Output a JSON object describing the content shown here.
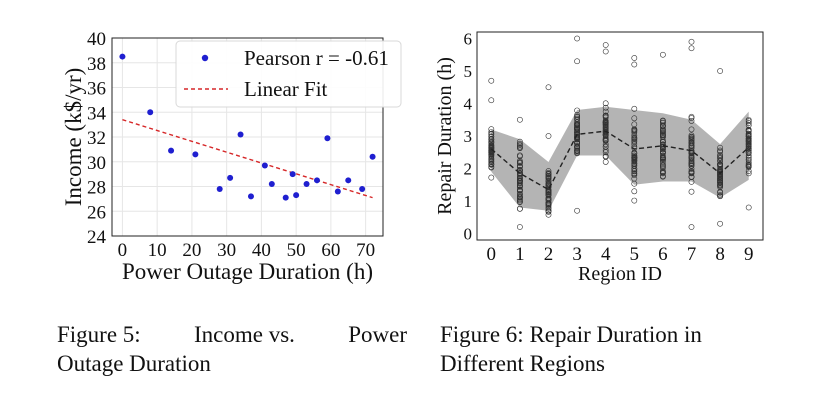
{
  "figures": [
    {
      "caption_lines": [
        [
          "Figure 5:",
          "Income vs.",
          "Power"
        ],
        [
          "Outage Duration"
        ]
      ]
    },
    {
      "caption_lines": [
        [
          "Figure 6: Repair Duration in"
        ],
        [
          "Different Regions"
        ]
      ]
    }
  ],
  "chart_data": [
    {
      "type": "scatter",
      "xlabel": "Power Outage Duration (h)",
      "ylabel": "Income (k$/yr)",
      "xticks": [
        0,
        10,
        20,
        30,
        40,
        50,
        60,
        70
      ],
      "yticks": [
        24,
        26,
        28,
        30,
        32,
        34,
        36,
        38,
        40
      ],
      "xlim": [
        -3,
        75
      ],
      "ylim": [
        24,
        40
      ],
      "grid": true,
      "legend_position": "top-right",
      "series": [
        {
          "name": "Pearson r = -0.61",
          "kind": "points",
          "color": "#1f1fd0",
          "points": [
            [
              0,
              38.5
            ],
            [
              8,
              34
            ],
            [
              14,
              30.9
            ],
            [
              21,
              30.6
            ],
            [
              28,
              27.8
            ],
            [
              31,
              28.7
            ],
            [
              34,
              32.2
            ],
            [
              37,
              27.2
            ],
            [
              41,
              29.7
            ],
            [
              43,
              28.2
            ],
            [
              47,
              27.1
            ],
            [
              49,
              29
            ],
            [
              50,
              27.3
            ],
            [
              53,
              28.2
            ],
            [
              56,
              28.5
            ],
            [
              59,
              31.9
            ],
            [
              62,
              27.6
            ],
            [
              65,
              28.5
            ],
            [
              69,
              27.8
            ],
            [
              72,
              30.4
            ]
          ]
        },
        {
          "name": "Linear Fit",
          "kind": "line",
          "style": "dashed",
          "color": "#d62728",
          "points": [
            [
              0,
              33.4
            ],
            [
              72,
              27.1
            ]
          ]
        }
      ]
    },
    {
      "type": "line",
      "xlabel": "Region ID",
      "ylabel": "Repair Duration (h)",
      "categories": [
        "0",
        "1",
        "2",
        "3",
        "4",
        "5",
        "6",
        "7",
        "8",
        "9"
      ],
      "yticks": [
        0,
        1,
        2,
        3,
        4,
        5,
        6
      ],
      "xlim": [
        -0.5,
        9.5
      ],
      "ylim": [
        -0.2,
        6.2
      ],
      "band_color": "#b4b4b4",
      "mean_line_style": "dashed",
      "mean": [
        2.6,
        1.85,
        1.35,
        3.05,
        3.15,
        2.6,
        2.7,
        2.55,
        1.85,
        2.65
      ],
      "band_low": [
        1.9,
        0.8,
        0.7,
        2.4,
        2.4,
        1.5,
        1.6,
        1.6,
        1.1,
        1.65
      ],
      "band_high": [
        3.2,
        2.9,
        2.2,
        3.8,
        3.9,
        3.8,
        3.7,
        3.5,
        2.75,
        3.75
      ],
      "point_ranges": [
        {
          "region": 0,
          "min": 1.2,
          "max": 4.7,
          "outliers": [
            4.1,
            4.7
          ]
        },
        {
          "region": 1,
          "min": 0.2,
          "max": 3.8,
          "outliers": [
            0.2,
            3.5
          ]
        },
        {
          "region": 2,
          "min": 0.4,
          "max": 4.5,
          "outliers": [
            4.5,
            3.0
          ]
        },
        {
          "region": 3,
          "min": 0.7,
          "max": 6.0,
          "outliers": [
            6.0,
            5.3,
            0.7
          ]
        },
        {
          "region": 4,
          "min": 0.9,
          "max": 5.8,
          "outliers": [
            5.8,
            5.6
          ]
        },
        {
          "region": 5,
          "min": 0.6,
          "max": 5.4,
          "outliers": [
            5.4,
            5.2
          ]
        },
        {
          "region": 6,
          "min": 0.9,
          "max": 5.5,
          "outliers": [
            5.5
          ]
        },
        {
          "region": 7,
          "min": 0.2,
          "max": 5.9,
          "outliers": [
            5.9,
            5.7,
            0.2
          ]
        },
        {
          "region": 8,
          "min": 0.3,
          "max": 5.0,
          "outliers": [
            5.0,
            0.3
          ]
        },
        {
          "region": 9,
          "min": 0.8,
          "max": 4.1,
          "outliers": [
            0.8
          ]
        }
      ]
    }
  ]
}
